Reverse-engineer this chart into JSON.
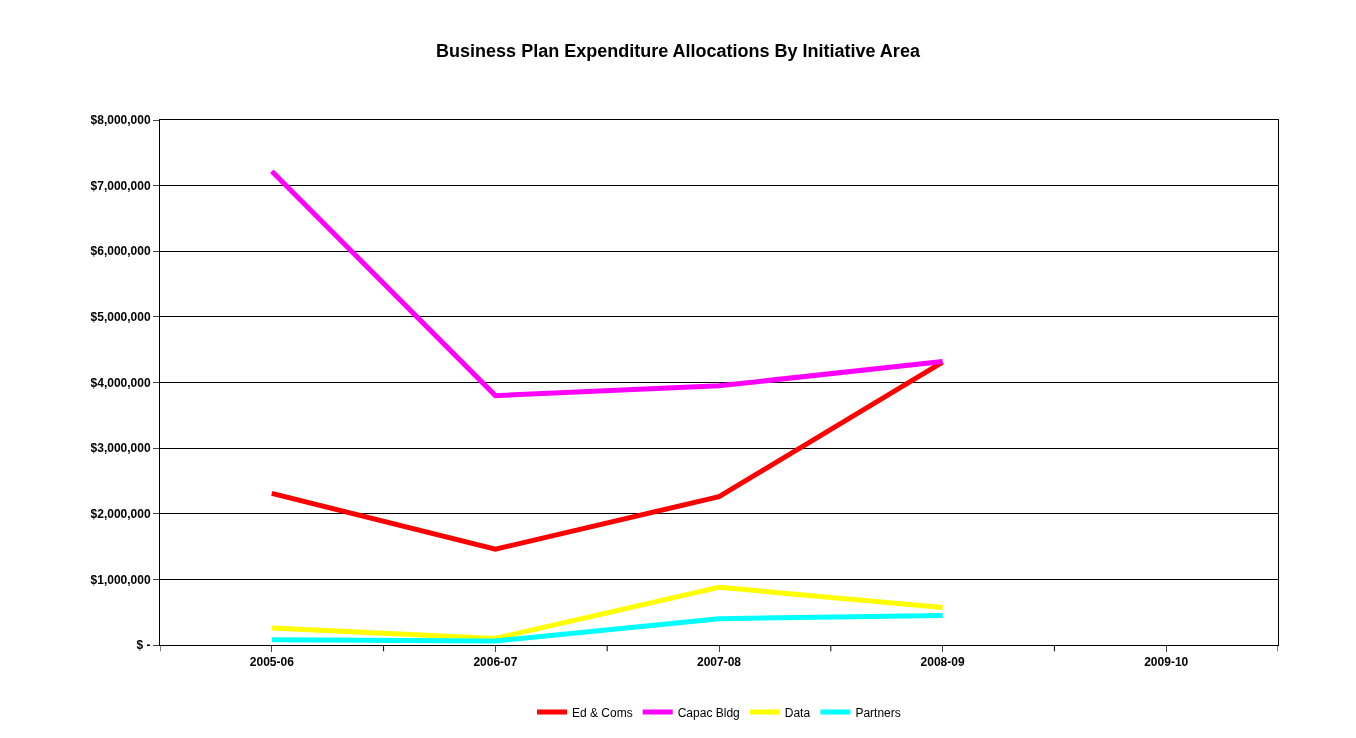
{
  "chart_data": {
    "type": "line",
    "title": "Business Plan Expenditure Allocations By Initiative Area",
    "categories": [
      "2005-06",
      "2006-07",
      "2007-08",
      "2008-09",
      "2009-10"
    ],
    "series": [
      {
        "name": "Ed & Coms",
        "color": "#ff0000",
        "values": [
          2310000,
          1460000,
          2260000,
          4310000,
          null
        ]
      },
      {
        "name": "Capac Bldg",
        "color": "#ff00ff",
        "values": [
          7220000,
          3800000,
          3950000,
          4320000,
          null
        ]
      },
      {
        "name": "Data",
        "color": "#ffff00",
        "values": [
          260000,
          100000,
          880000,
          570000,
          null
        ]
      },
      {
        "name": "Partners",
        "color": "#00ffff",
        "values": [
          80000,
          60000,
          400000,
          450000,
          null
        ]
      }
    ],
    "ylim": [
      0,
      8000000
    ],
    "yticks": [
      {
        "value": 0,
        "label": "$ -"
      },
      {
        "value": 1000000,
        "label": "$1,000,000"
      },
      {
        "value": 2000000,
        "label": "$2,000,000"
      },
      {
        "value": 3000000,
        "label": "$3,000,000"
      },
      {
        "value": 4000000,
        "label": "$4,000,000"
      },
      {
        "value": 5000000,
        "label": "$5,000,000"
      },
      {
        "value": 6000000,
        "label": "$6,000,000"
      },
      {
        "value": 7000000,
        "label": "$7,000,000"
      },
      {
        "value": 8000000,
        "label": "$8,000,000"
      }
    ],
    "grid": "y",
    "legend": "bottom",
    "marker": "none",
    "line_style": "solid"
  }
}
